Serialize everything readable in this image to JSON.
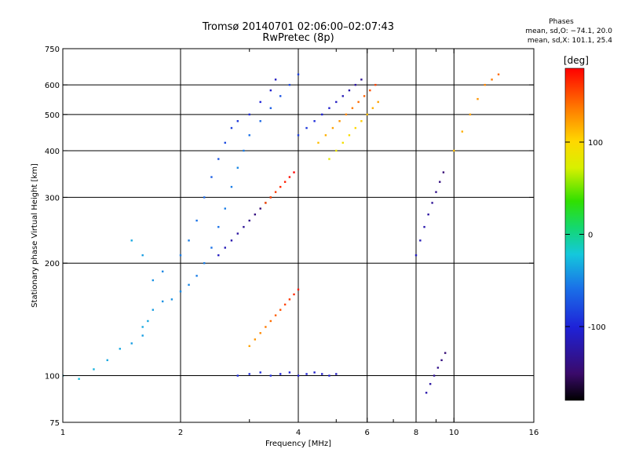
{
  "header": {
    "title": "Tromsø 20140701 02:06:00–02:07:43",
    "subtitle": "RwPretec (8p)"
  },
  "stats": {
    "heading": "Phases",
    "line_o": "mean, sd,O: −74.1, 20.0",
    "line_x": "mean, sd,X: 101.1, 25.4"
  },
  "chart_data": {
    "type": "scatter",
    "xlabel": "Frequency [MHz]",
    "ylabel": "Stationary phase Virtual Height [km]",
    "x_scale": "log",
    "y_scale": "log",
    "xlim": [
      1,
      16
    ],
    "ylim": [
      75,
      750
    ],
    "x_ticks": [
      {
        "value": 1,
        "label": "1"
      },
      {
        "value": 2,
        "label": "2"
      },
      {
        "value": 4,
        "label": "4"
      },
      {
        "value": 6,
        "label": "6"
      },
      {
        "value": 8,
        "label": "8"
      },
      {
        "value": 10,
        "label": "10"
      },
      {
        "value": 16,
        "label": "16"
      }
    ],
    "x_minor": [
      3,
      5,
      7,
      9
    ],
    "y_ticks": [
      {
        "value": 75,
        "label": "75"
      },
      {
        "value": 100,
        "label": "100"
      },
      {
        "value": 200,
        "label": "200"
      },
      {
        "value": 300,
        "label": "300"
      },
      {
        "value": 400,
        "label": "400"
      },
      {
        "value": 500,
        "label": "500"
      },
      {
        "value": 600,
        "label": "600"
      },
      {
        "value": 750,
        "label": "750"
      }
    ],
    "grid": true,
    "colorbar": {
      "label": "[deg]",
      "min": -180,
      "max": 180,
      "ticks": [
        {
          "value": 100,
          "label": "100"
        },
        {
          "value": 0,
          "label": "0"
        },
        {
          "value": -100,
          "label": "-100"
        }
      ]
    },
    "series": [
      {
        "points": [
          [
            1.0,
            100,
            -25
          ],
          [
            1.1,
            98,
            -25
          ],
          [
            1.2,
            104,
            -30
          ],
          [
            1.3,
            110,
            -35
          ],
          [
            1.4,
            118,
            -35
          ],
          [
            1.5,
            122,
            -40
          ],
          [
            1.6,
            128,
            -40
          ],
          [
            1.6,
            135,
            -35
          ],
          [
            1.65,
            140,
            -35
          ],
          [
            1.7,
            150,
            -40
          ],
          [
            1.8,
            158,
            -45
          ],
          [
            1.9,
            160,
            -45
          ],
          [
            2.0,
            168,
            -50
          ],
          [
            2.1,
            175,
            -50
          ],
          [
            2.2,
            185,
            -55
          ],
          [
            2.3,
            200,
            -55
          ],
          [
            2.4,
            220,
            -60
          ],
          [
            2.5,
            250,
            -60
          ],
          [
            2.6,
            280,
            -55
          ],
          [
            2.7,
            320,
            -55
          ],
          [
            2.8,
            360,
            -50
          ],
          [
            2.9,
            400,
            -55
          ],
          [
            3.0,
            440,
            -60
          ],
          [
            3.2,
            480,
            -65
          ],
          [
            3.4,
            520,
            -70
          ],
          [
            3.6,
            560,
            -75
          ],
          [
            3.8,
            600,
            -80
          ],
          [
            4.0,
            640,
            -85
          ]
        ]
      },
      {
        "points": [
          [
            1.5,
            230,
            -35
          ],
          [
            1.6,
            210,
            -40
          ],
          [
            1.7,
            180,
            -45
          ],
          [
            1.8,
            190,
            -50
          ],
          [
            2.0,
            210,
            -55
          ],
          [
            2.1,
            230,
            -55
          ],
          [
            2.2,
            260,
            -60
          ],
          [
            2.3,
            300,
            -65
          ],
          [
            2.4,
            340,
            -70
          ],
          [
            2.5,
            380,
            -75
          ],
          [
            2.6,
            420,
            -80
          ],
          [
            2.7,
            460,
            -85
          ],
          [
            2.8,
            480,
            -90
          ],
          [
            3.0,
            500,
            -95
          ],
          [
            3.2,
            540,
            -100
          ],
          [
            3.4,
            580,
            -105
          ],
          [
            3.5,
            620,
            -110
          ]
        ]
      },
      {
        "points": [
          [
            2.8,
            100,
            -95
          ],
          [
            3.0,
            101,
            -95
          ],
          [
            3.2,
            102,
            -95
          ],
          [
            3.4,
            100,
            -95
          ],
          [
            3.6,
            101,
            -100
          ],
          [
            3.8,
            102,
            -100
          ],
          [
            4.0,
            100,
            -100
          ],
          [
            4.2,
            101,
            -100
          ],
          [
            4.4,
            102,
            -105
          ],
          [
            4.6,
            101,
            -105
          ],
          [
            4.8,
            100,
            -105
          ],
          [
            5.0,
            101,
            -110
          ]
        ]
      },
      {
        "points": [
          [
            2.5,
            210,
            -110
          ],
          [
            2.6,
            220,
            -115
          ],
          [
            2.7,
            230,
            -120
          ],
          [
            2.8,
            240,
            -125
          ],
          [
            2.9,
            250,
            -130
          ],
          [
            3.0,
            260,
            -135
          ],
          [
            3.1,
            270,
            -140
          ],
          [
            3.2,
            280,
            -145
          ],
          [
            3.3,
            290,
            -150
          ],
          [
            3.4,
            300,
            -155
          ]
        ]
      },
      {
        "points": [
          [
            3.0,
            120,
            120
          ],
          [
            3.1,
            125,
            125
          ],
          [
            3.2,
            130,
            130
          ],
          [
            3.3,
            135,
            135
          ],
          [
            3.4,
            140,
            140
          ],
          [
            3.5,
            145,
            145
          ],
          [
            3.6,
            150,
            150
          ],
          [
            3.7,
            155,
            155
          ],
          [
            3.8,
            160,
            160
          ],
          [
            3.9,
            165,
            165
          ],
          [
            4.0,
            170,
            170
          ]
        ]
      },
      {
        "points": [
          [
            3.3,
            290,
            150
          ],
          [
            3.4,
            300,
            155
          ],
          [
            3.5,
            310,
            160
          ],
          [
            3.6,
            320,
            165
          ],
          [
            3.7,
            330,
            170
          ],
          [
            3.8,
            340,
            175
          ],
          [
            3.9,
            350,
            180
          ]
        ]
      },
      {
        "points": [
          [
            4.0,
            440,
            -85
          ],
          [
            4.2,
            460,
            -90
          ],
          [
            4.4,
            480,
            -95
          ],
          [
            4.6,
            500,
            -100
          ],
          [
            4.8,
            520,
            -105
          ],
          [
            5.0,
            540,
            -110
          ],
          [
            5.2,
            560,
            -115
          ],
          [
            5.4,
            580,
            -120
          ],
          [
            5.6,
            600,
            -125
          ],
          [
            5.8,
            620,
            -130
          ]
        ]
      },
      {
        "points": [
          [
            4.5,
            420,
            110
          ],
          [
            4.7,
            440,
            115
          ],
          [
            4.9,
            460,
            120
          ],
          [
            5.1,
            480,
            125
          ],
          [
            5.3,
            500,
            130
          ],
          [
            5.5,
            520,
            135
          ],
          [
            5.7,
            540,
            140
          ],
          [
            5.9,
            560,
            145
          ],
          [
            6.1,
            580,
            150
          ],
          [
            6.3,
            600,
            155
          ]
        ]
      },
      {
        "points": [
          [
            4.8,
            380,
            80
          ],
          [
            5.0,
            400,
            85
          ],
          [
            5.2,
            420,
            90
          ],
          [
            5.4,
            440,
            95
          ],
          [
            5.6,
            460,
            100
          ],
          [
            5.8,
            480,
            105
          ],
          [
            6.0,
            500,
            110
          ],
          [
            6.2,
            520,
            115
          ],
          [
            6.4,
            540,
            120
          ]
        ]
      },
      {
        "points": [
          [
            8.0,
            210,
            -110
          ],
          [
            8.2,
            230,
            -115
          ],
          [
            8.4,
            250,
            -120
          ],
          [
            8.6,
            270,
            -125
          ],
          [
            8.8,
            290,
            -130
          ],
          [
            9.0,
            310,
            -135
          ],
          [
            9.2,
            330,
            -140
          ],
          [
            9.4,
            350,
            -145
          ]
        ]
      },
      {
        "points": [
          [
            10.0,
            400,
            110
          ],
          [
            10.5,
            450,
            115
          ],
          [
            11.0,
            500,
            120
          ],
          [
            11.5,
            550,
            125
          ],
          [
            12.0,
            600,
            130
          ],
          [
            12.5,
            620,
            135
          ],
          [
            13.0,
            640,
            140
          ]
        ]
      },
      {
        "points": [
          [
            8.5,
            90,
            -120
          ],
          [
            8.7,
            95,
            -125
          ],
          [
            8.9,
            100,
            -130
          ],
          [
            9.1,
            105,
            -135
          ],
          [
            9.3,
            110,
            -140
          ],
          [
            9.5,
            115,
            -145
          ]
        ]
      }
    ]
  }
}
